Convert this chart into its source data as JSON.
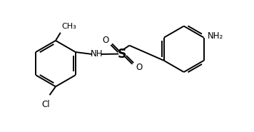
{
  "bg_color": "#ffffff",
  "line_color": "#000000",
  "line_width": 1.4,
  "font_size": 8.5,
  "fig_width": 3.56,
  "fig_height": 1.85,
  "dpi": 100,
  "xlim": [
    0,
    10.5
  ],
  "ylim": [
    0,
    5.2
  ],
  "R1cx": 2.3,
  "R1cy": 2.7,
  "R1r": 0.95,
  "R2cx": 7.6,
  "R2cy": 3.3,
  "R2r": 0.95,
  "Scx": 5.05,
  "Scy": 3.1,
  "ch3_label": "CH₃",
  "cl_label": "Cl",
  "nh_label": "NH",
  "nh2_label": "NH₂",
  "s_label": "S",
  "o_label": "O"
}
